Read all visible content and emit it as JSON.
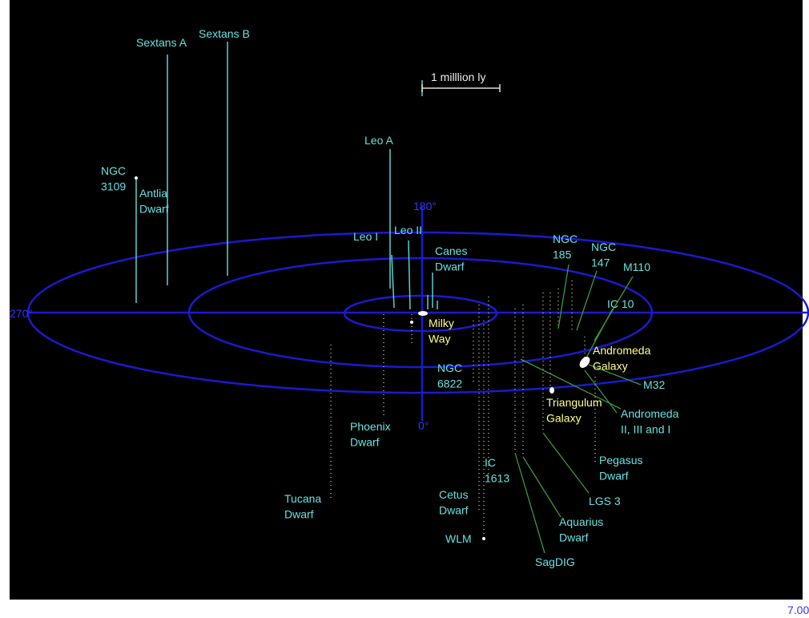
{
  "scale_bar": "1 milllion ly",
  "axis_labels": [
    "180°",
    "270°",
    "0°"
  ],
  "labels": [
    {
      "lines": [
        "Sextans A"
      ]
    },
    {
      "lines": [
        "Sextans B"
      ]
    },
    {
      "lines": [
        "NGC",
        "3109"
      ]
    },
    {
      "lines": [
        "Antlia",
        "Dwarf"
      ]
    },
    {
      "lines": [
        "Leo A"
      ]
    },
    {
      "lines": [
        "Leo I"
      ]
    },
    {
      "lines": [
        "Leo II"
      ]
    },
    {
      "lines": [
        "Canes",
        "Dwarf"
      ]
    },
    {
      "lines": [
        "NGC",
        "185"
      ]
    },
    {
      "lines": [
        "NGC",
        "147"
      ]
    },
    {
      "lines": [
        "M110"
      ]
    },
    {
      "lines": [
        "IC 10"
      ]
    },
    {
      "lines": [
        "Milky",
        "Way"
      ]
    },
    {
      "lines": [
        "Andromeda",
        "Galaxy"
      ]
    },
    {
      "lines": [
        "NGC",
        "6822"
      ]
    },
    {
      "lines": [
        "M32"
      ]
    },
    {
      "lines": [
        "Triangulum",
        "Galaxy"
      ]
    },
    {
      "lines": [
        "Andromeda",
        "II, III and I"
      ]
    },
    {
      "lines": [
        "Phoenix",
        "Dwarf"
      ]
    },
    {
      "lines": [
        "IC",
        "1613"
      ]
    },
    {
      "lines": [
        "Pegasus",
        "Dwarf"
      ]
    },
    {
      "lines": [
        "LGS 3"
      ]
    },
    {
      "lines": [
        "Tucana",
        "Dwarf"
      ]
    },
    {
      "lines": [
        "Cetus",
        "Dwarf"
      ]
    },
    {
      "lines": [
        "Aquarius",
        "Dwarf"
      ]
    },
    {
      "lines": [
        "WLM"
      ]
    },
    {
      "lines": [
        "SagDIG"
      ]
    }
  ],
  "corner_code": "7.00"
}
